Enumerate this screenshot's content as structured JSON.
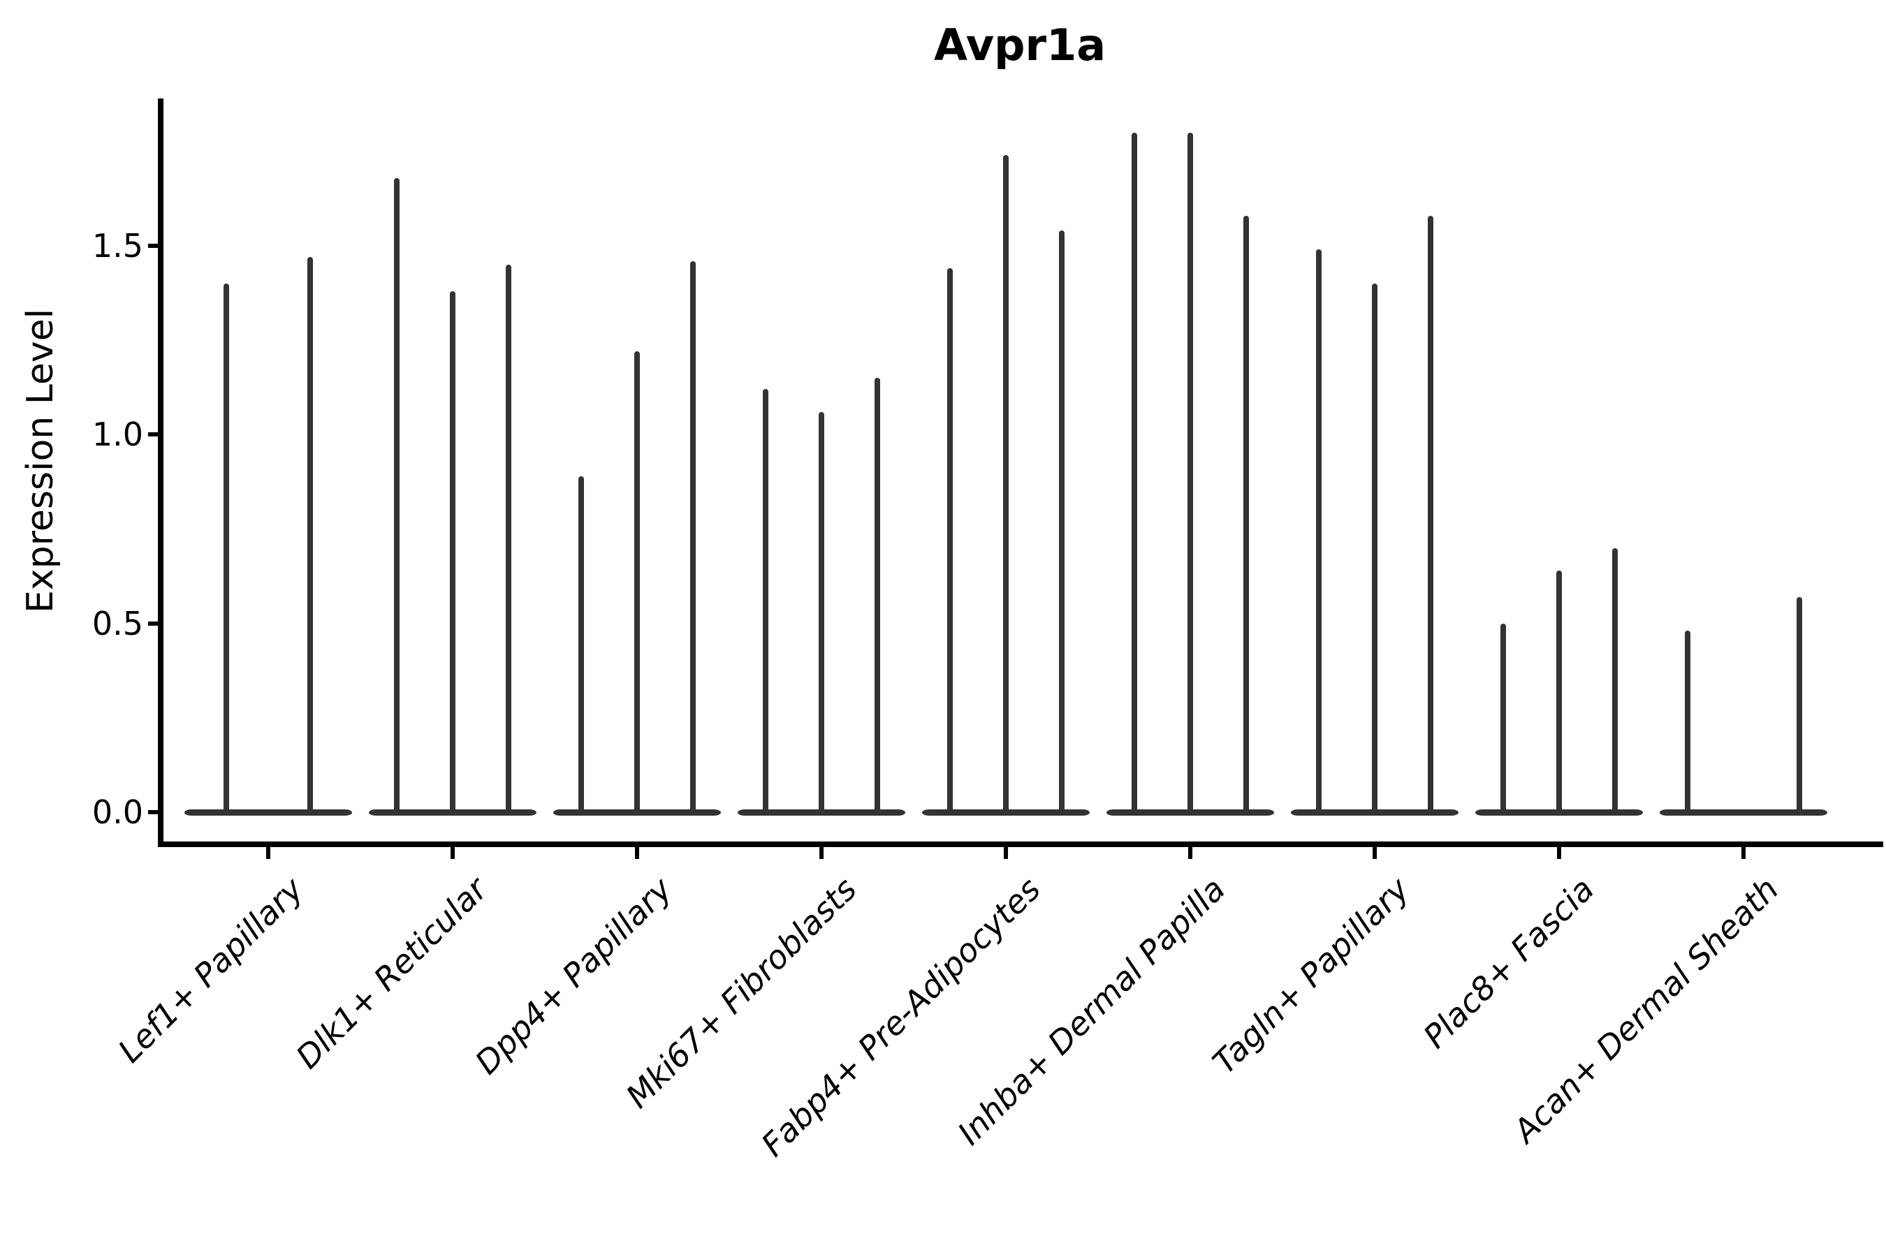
{
  "chart_data": {
    "type": "violin",
    "title": "Avpr1a",
    "xlabel": "",
    "ylabel": "Expression Level",
    "ytick_labels": [
      "0.0",
      "0.5",
      "1.0",
      "1.5"
    ],
    "ytick_values": [
      0.0,
      0.5,
      1.0,
      1.5
    ],
    "ylim": [
      -0.09,
      1.91
    ],
    "grid": false,
    "legend": false,
    "violin_color": "#333333",
    "axis_color": "#000000",
    "description": "Needle-thin stacked violins: each cell-type category shows 2-3 sample violins; almost all density sits at 0 (flat base bar) with a thin spike rising to each sample's maximum expression value.",
    "categories": [
      {
        "label": "Lef1+ Papillary",
        "spike_maxima": [
          1.4,
          1.47
        ]
      },
      {
        "label": "Dlk1+ Reticular",
        "spike_maxima": [
          1.68,
          1.38,
          1.45
        ]
      },
      {
        "label": "Dpp4+ Papillary",
        "spike_maxima": [
          0.89,
          1.22,
          1.46
        ]
      },
      {
        "label": "Mki67+ Fibroblasts",
        "spike_maxima": [
          1.12,
          1.06,
          1.15
        ]
      },
      {
        "label": "Fabp4+ Pre-Adipocytes",
        "spike_maxima": [
          1.44,
          1.74,
          1.54
        ]
      },
      {
        "label": "Inhba+ Dermal Papilla",
        "spike_maxima": [
          1.8,
          1.8,
          1.58
        ]
      },
      {
        "label": "Tagln+ Papillary",
        "spike_maxima": [
          1.49,
          1.4,
          1.58
        ]
      },
      {
        "label": "Plac8+ Fascia",
        "spike_maxima": [
          0.5,
          0.64,
          0.7
        ]
      },
      {
        "label": "Acan+ Dermal Sheath",
        "spike_maxima": [
          0.48,
          0,
          0.57
        ]
      }
    ]
  }
}
